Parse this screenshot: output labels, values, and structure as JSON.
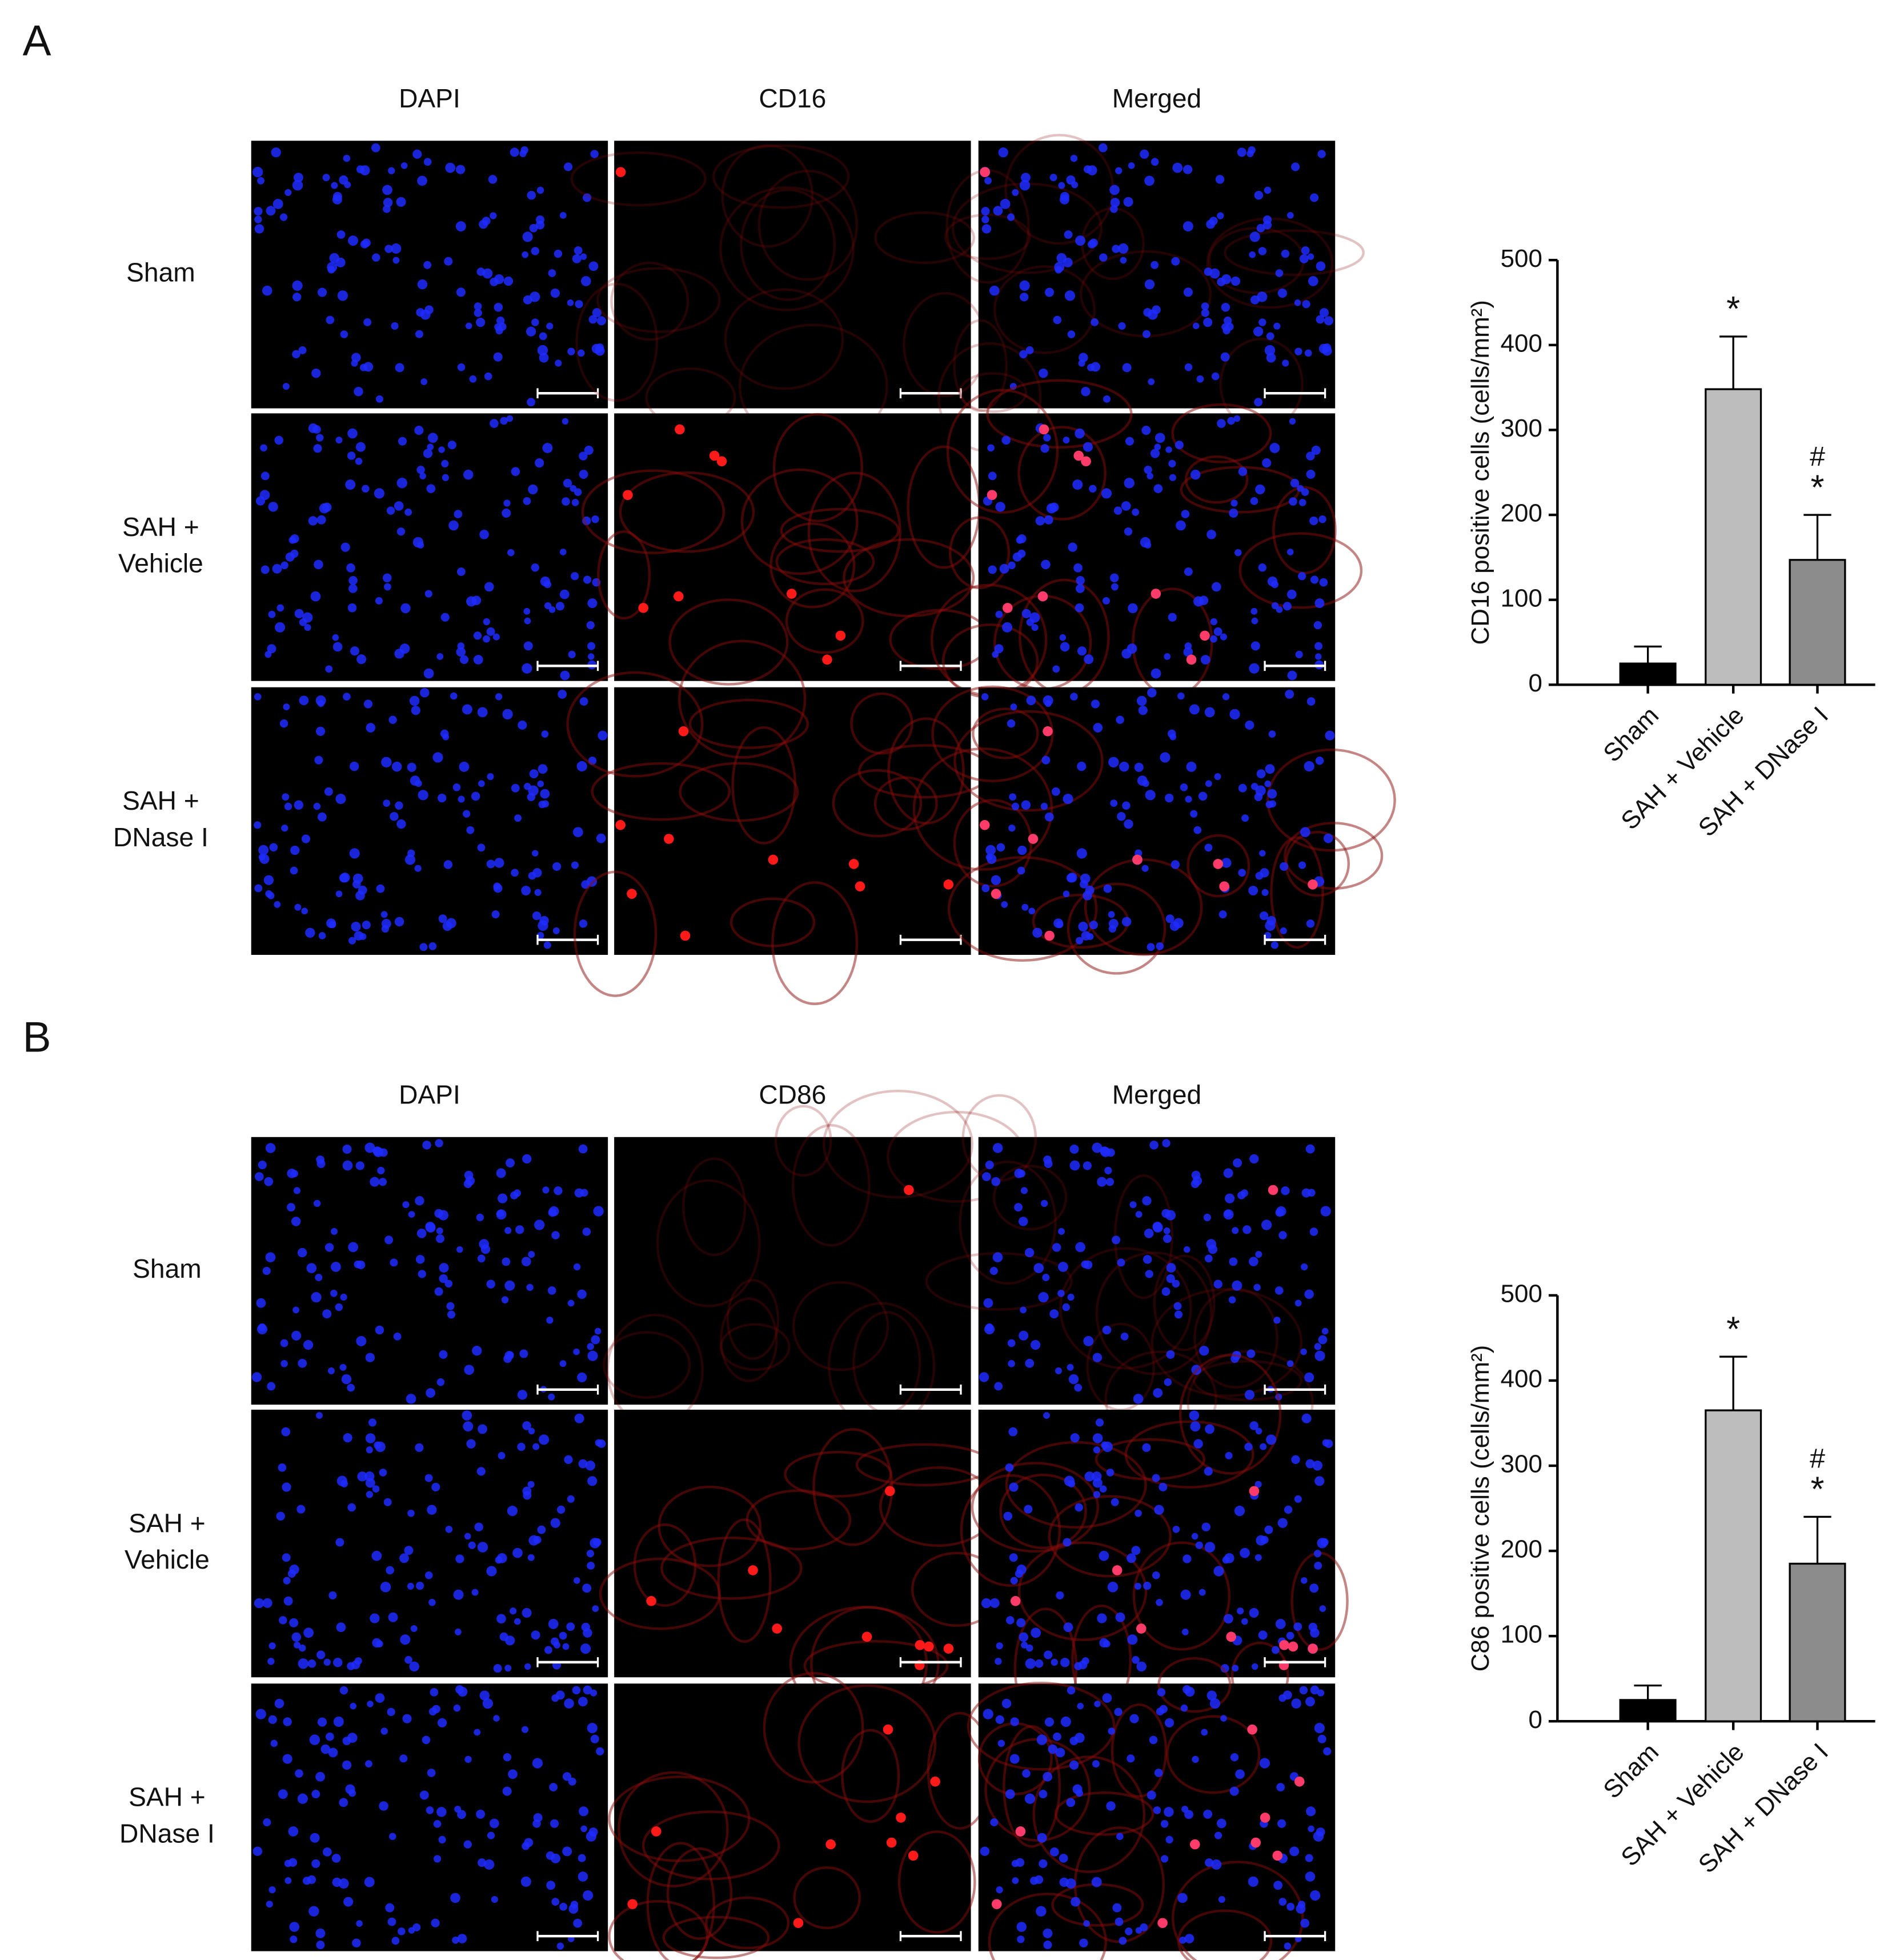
{
  "panels": [
    {
      "label": "A",
      "columns": [
        "DAPI",
        "CD16",
        "Merged"
      ],
      "rows": [
        [
          "Sham"
        ],
        [
          "SAH +",
          "Vehicle"
        ],
        [
          "SAH +",
          "DNase I"
        ]
      ]
    },
    {
      "label": "B",
      "columns": [
        "DAPI",
        "CD86",
        "Merged"
      ],
      "rows": [
        [
          "Sham"
        ],
        [
          "SAH +",
          "Vehicle"
        ],
        [
          "SAH +",
          "DNase I"
        ]
      ]
    }
  ],
  "chart_data": [
    {
      "type": "bar",
      "y_label": "CD16 positive cells (cells/mm²)",
      "categories": [
        "Sham",
        "SAH + Vehicle",
        "SAH + DNase I"
      ],
      "values": [
        25,
        348,
        147
      ],
      "errors": [
        20,
        62,
        53
      ],
      "colors": [
        "#000000",
        "#bdbdbd",
        "#8c8c8c"
      ],
      "ylim": [
        0,
        500
      ],
      "yticks": [
        0,
        100,
        200,
        300,
        400,
        500
      ],
      "annotations": [
        {
          "category": "SAH + Vehicle",
          "text": "*"
        },
        {
          "category": "SAH + DNase I",
          "text": "#"
        },
        {
          "category": "SAH + DNase I",
          "text": "*"
        }
      ]
    },
    {
      "type": "bar",
      "y_label": "C86 positive cells (cells/mm²)",
      "categories": [
        "Sham",
        "SAH + Vehicle",
        "SAH + DNase I"
      ],
      "values": [
        25,
        365,
        185
      ],
      "errors": [
        17,
        63,
        55
      ],
      "colors": [
        "#000000",
        "#bdbdbd",
        "#8c8c8c"
      ],
      "ylim": [
        0,
        500
      ],
      "yticks": [
        0,
        100,
        200,
        300,
        400,
        500
      ],
      "annotations": [
        {
          "category": "SAH + Vehicle",
          "text": "*"
        },
        {
          "category": "SAH + DNase I",
          "text": "#"
        },
        {
          "category": "SAH + DNase I",
          "text": "*"
        }
      ]
    }
  ]
}
